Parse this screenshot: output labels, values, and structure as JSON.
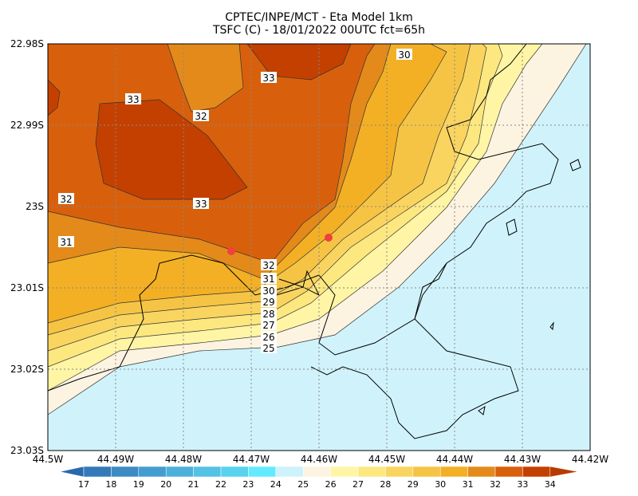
{
  "header": {
    "title": [
      "CPTEC/INPE/MCT -  Eta Model 1km",
      "TSFC (C) - 18/01/2022 00UTC fct=65h"
    ]
  },
  "axes": {
    "lat_ticks": [
      "22.98S",
      "22.99S",
      "23S",
      "23.01S",
      "23.02S",
      "23.03S"
    ],
    "lon_ticks": [
      "44.5W",
      "44.49W",
      "44.48W",
      "44.47W",
      "44.46W",
      "44.45W",
      "44.44W",
      "44.43W",
      "44.42W"
    ]
  },
  "colorbar": {
    "labels": [
      17,
      18,
      19,
      20,
      21,
      22,
      23,
      24,
      25,
      26,
      27,
      28,
      29,
      30,
      31,
      32,
      33,
      34
    ],
    "colors": [
      "#2a68ae",
      "#3479ba",
      "#3c8bc4",
      "#449dcf",
      "#4cb0da",
      "#53c2e4",
      "#58d3ee",
      "#63eaff",
      "#cdf2fb",
      "#fdf3e1",
      "#fff5a5",
      "#fde880",
      "#f9d560",
      "#f6c445",
      "#f3b024",
      "#e48a1a",
      "#d8600c",
      "#c44000",
      "#b83a00"
    ]
  },
  "contour_labels": [
    "30",
    "33",
    "33",
    "32",
    "32",
    "33",
    "31",
    "32",
    "31",
    "30",
    "29",
    "28",
    "27",
    "26",
    "25"
  ]
}
